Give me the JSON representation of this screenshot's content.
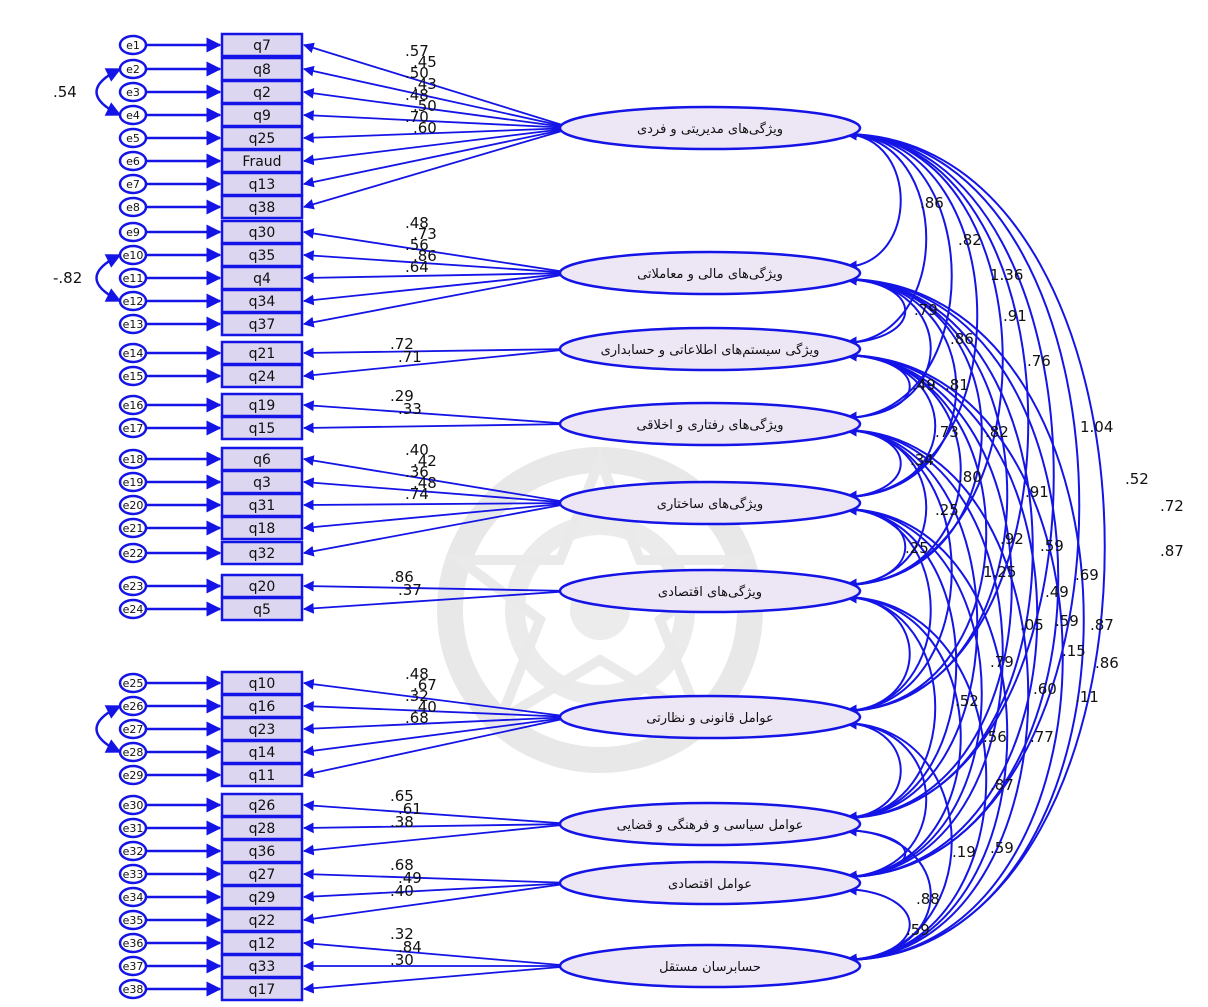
{
  "diagram": {
    "factors": [
      {
        "label": "ویژگی‌های مدیریتی و فردی",
        "indicators": [
          "q7",
          "q8",
          "q2",
          "q9",
          "q25",
          "Fraud",
          "q13",
          "q38"
        ],
        "errors": [
          "e1",
          "e2",
          "e3",
          "e4",
          "e5",
          "e6",
          "e7",
          "e8"
        ],
        "loadings": [
          ".57",
          ".45",
          ".50",
          ".43",
          ".48",
          ".50",
          ".70",
          ".60"
        ]
      },
      {
        "label": "ویژگی‌های مالی و معاملاتی",
        "indicators": [
          "q30",
          "q35",
          "q4",
          "q34",
          "q37"
        ],
        "errors": [
          "e9",
          "e10",
          "e11",
          "e12",
          "e13"
        ],
        "loadings": [
          ".48",
          ".73",
          ".56",
          ".86",
          ".64"
        ]
      },
      {
        "label": "ویژگی سیستم‌های اطلاعاتی و حسابداری",
        "indicators": [
          "q21",
          "q24"
        ],
        "errors": [
          "e14",
          "e15"
        ],
        "loadings": [
          ".72",
          ".71"
        ]
      },
      {
        "label": "ویژگی‌های رفتاری و اخلاقی",
        "indicators": [
          "q19",
          "q15"
        ],
        "errors": [
          "e16",
          "e17"
        ],
        "loadings": [
          ".29",
          ".33"
        ]
      },
      {
        "label": "ویژگی‌های ساختاری",
        "indicators": [
          "q6",
          "q3",
          "q31",
          "q18",
          "q32"
        ],
        "errors": [
          "e18",
          "e19",
          "e20",
          "e21",
          "e22"
        ],
        "loadings": [
          ".40",
          ".42",
          ".36",
          ".48",
          ".74"
        ]
      },
      {
        "label": "ویژگی‌های اقتصادی",
        "indicators": [
          "q20",
          "q5"
        ],
        "errors": [
          "e23",
          "e24"
        ],
        "loadings": [
          ".86",
          ".37"
        ]
      },
      {
        "label": "عوامل قانونی و نظارتی",
        "indicators": [
          "q10",
          "q16",
          "q23",
          "q14",
          "q11"
        ],
        "errors": [
          "e25",
          "e26",
          "e27",
          "e28",
          "e29"
        ],
        "loadings": [
          ".48",
          ".67",
          ".32",
          ".40",
          ".68"
        ]
      },
      {
        "label": "عوامل سیاسی و فرهنگی و قضایی",
        "indicators": [
          "q26",
          "q28",
          "q36"
        ],
        "errors": [
          "e30",
          "e31",
          "e32"
        ],
        "loadings": [
          ".65",
          ".61",
          ".38"
        ]
      },
      {
        "label": "عوامل اقتصادی",
        "indicators": [
          "q27",
          "q29",
          "q22"
        ],
        "errors": [
          "e33",
          "e34",
          "e35"
        ],
        "loadings": [
          ".68",
          ".49",
          ".40"
        ]
      },
      {
        "label": "حسابرسان مستقل",
        "indicators": [
          "q12",
          "q33",
          "q17"
        ],
        "errors": [
          "e36",
          "e37",
          "e38"
        ],
        "loadings": [
          ".32",
          ".84",
          ".30"
        ]
      }
    ],
    "error_covariances": [
      {
        "between": [
          "e2",
          "e4"
        ],
        "value": ".54"
      },
      {
        "between": [
          "e10",
          "e12"
        ],
        "value": "-.82"
      },
      {
        "between": [
          "e26",
          "e28"
        ],
        "value": ""
      }
    ],
    "factor_correlations": [
      ".86",
      ".82",
      "1.36",
      ".91",
      ".76",
      "1.04",
      ".52",
      ".72",
      ".87",
      ".79",
      ".86",
      ".49",
      ".81",
      ".73",
      ".82",
      ".34",
      ".80",
      ".91",
      ".25",
      ".92",
      ".59",
      ".69",
      ".25",
      "1.25",
      ".49",
      ".05",
      ".59",
      ".87",
      ".15",
      ".86",
      ".79",
      ".60",
      ".11",
      ".52",
      ".56",
      ".77",
      ".87",
      ".19",
      ".59",
      ".88",
      ".59"
    ]
  }
}
